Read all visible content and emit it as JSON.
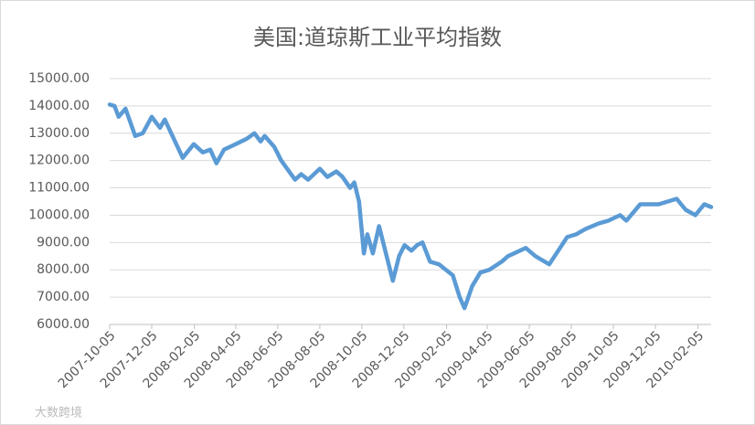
{
  "chart_data": {
    "type": "line",
    "title": "美国:道琼斯工业平均指数",
    "watermark": "大数跨境",
    "x": [
      "2007-10-05",
      "2007-10-12",
      "2007-10-18",
      "2007-10-28",
      "2007-11-11",
      "2007-11-22",
      "2007-12-05",
      "2007-12-17",
      "2007-12-24",
      "2008-01-06",
      "2008-01-19",
      "2008-02-04",
      "2008-02-17",
      "2008-02-28",
      "2008-03-08",
      "2008-03-19",
      "2008-04-05",
      "2008-04-21",
      "2008-05-02",
      "2008-05-11",
      "2008-05-17",
      "2008-05-31",
      "2008-06-10",
      "2008-06-30",
      "2008-07-09",
      "2008-07-19",
      "2008-08-05",
      "2008-08-16",
      "2008-08-29",
      "2008-09-07",
      "2008-09-18",
      "2008-09-24",
      "2008-10-01",
      "2008-10-08",
      "2008-10-13",
      "2008-10-21",
      "2008-10-30",
      "2008-11-12",
      "2008-11-19",
      "2008-11-28",
      "2008-12-06",
      "2008-12-16",
      "2008-12-24",
      "2009-01-01",
      "2009-01-12",
      "2009-01-25",
      "2009-02-14",
      "2009-02-24",
      "2009-03-03",
      "2009-03-14",
      "2009-03-26",
      "2009-04-08",
      "2009-04-26",
      "2009-05-05",
      "2009-05-31",
      "2009-06-14",
      "2009-07-04",
      "2009-07-17",
      "2009-07-30",
      "2009-08-12",
      "2009-08-26",
      "2009-09-14",
      "2009-09-28",
      "2009-10-15",
      "2009-10-24",
      "2009-11-13",
      "2009-12-10",
      "2009-12-23",
      "2010-01-05",
      "2010-01-18",
      "2010-02-01",
      "2010-02-14",
      "2010-02-24"
    ],
    "series": [
      {
        "name": "道琼斯工业平均指数",
        "color": "#5b9bd5",
        "values": [
          14050,
          14000,
          13600,
          13900,
          12900,
          13000,
          13600,
          13200,
          13500,
          12800,
          12100,
          12600,
          12300,
          12400,
          11900,
          12400,
          12600,
          12800,
          13000,
          12700,
          12900,
          12500,
          12000,
          11300,
          11500,
          11300,
          11700,
          11400,
          11600,
          11400,
          11000,
          11200,
          10500,
          8600,
          9300,
          8600,
          9600,
          8300,
          7600,
          8500,
          8900,
          8700,
          8900,
          9000,
          8300,
          8200,
          7800,
          7000,
          6600,
          7400,
          7900,
          8000,
          8300,
          8500,
          8800,
          8500,
          8200,
          8700,
          9200,
          9300,
          9500,
          9700,
          9800,
          10000,
          9800,
          10400,
          10400,
          10500,
          10600,
          10200,
          10000,
          10400,
          10300
        ]
      }
    ],
    "xlim": [
      "2007-10-05",
      "2010-02-24"
    ],
    "xticks": [
      "2007-10-05",
      "2007-12-05",
      "2008-02-05",
      "2008-04-05",
      "2008-06-05",
      "2008-08-05",
      "2008-10-05",
      "2008-12-05",
      "2009-02-05",
      "2009-04-05",
      "2009-06-05",
      "2009-08-05",
      "2009-10-05",
      "2009-12-05",
      "2010-02-05"
    ],
    "ylim": [
      6000,
      15000
    ],
    "yticks": [
      {
        "value": 6000,
        "label": "6000.00"
      },
      {
        "value": 7000,
        "label": "7000.00"
      },
      {
        "value": 8000,
        "label": "8000.00"
      },
      {
        "value": 9000,
        "label": "9000.00"
      },
      {
        "value": 10000,
        "label": "10000.00"
      },
      {
        "value": 11000,
        "label": "11000.00"
      },
      {
        "value": 12000,
        "label": "12000.00"
      },
      {
        "value": 13000,
        "label": "13000.00"
      },
      {
        "value": 14000,
        "label": "14000.00"
      },
      {
        "value": 15000,
        "label": "15000.00"
      }
    ],
    "grid": true
  }
}
